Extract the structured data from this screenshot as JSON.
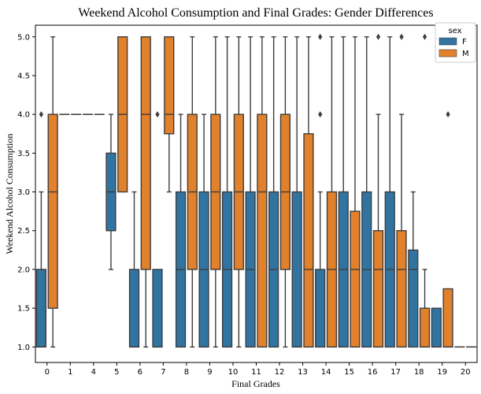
{
  "chart_data": {
    "type": "boxplot",
    "title": "Weekend Alcohol Consumption and Final Grades: Gender Differences",
    "xlabel": "Final Grades",
    "ylabel": "Weekend Alcohol Consumption",
    "categories": [
      "0",
      "1",
      "4",
      "5",
      "6",
      "7",
      "8",
      "9",
      "10",
      "11",
      "12",
      "13",
      "14",
      "15",
      "16",
      "17",
      "18",
      "19",
      "20"
    ],
    "ylim": [
      0.8,
      5.15
    ],
    "yticks": [
      1.0,
      1.5,
      2.0,
      2.5,
      3.0,
      3.5,
      4.0,
      4.5,
      5.0
    ],
    "legend": {
      "title": "sex",
      "placement": "top-right"
    },
    "series": [
      {
        "name": "F",
        "color": "#1f77b4",
        "boxes": [
          {
            "category": "0",
            "min": 1,
            "q1": 1,
            "median": 1,
            "q3": 2,
            "max": 3,
            "outliers": [
              4
            ]
          },
          {
            "category": "1",
            "min": 4,
            "q1": 4,
            "median": 4,
            "q3": 4,
            "max": 4,
            "outliers": []
          },
          {
            "category": "4",
            "min": 4,
            "q1": 4,
            "median": 4,
            "q3": 4,
            "max": 4,
            "outliers": []
          },
          {
            "category": "5",
            "min": 2,
            "q1": 2.5,
            "median": 3,
            "q3": 3.5,
            "max": 4,
            "outliers": []
          },
          {
            "category": "6",
            "min": 1,
            "q1": 1,
            "median": 1,
            "q3": 2,
            "max": 3,
            "outliers": []
          },
          {
            "category": "7",
            "min": 1,
            "q1": 1,
            "median": 1,
            "q3": 2,
            "max": 2,
            "outliers": [
              4
            ]
          },
          {
            "category": "8",
            "min": 1,
            "q1": 1,
            "median": 2,
            "q3": 3,
            "max": 4,
            "outliers": []
          },
          {
            "category": "9",
            "min": 1,
            "q1": 1,
            "median": 2,
            "q3": 3,
            "max": 4,
            "outliers": []
          },
          {
            "category": "10",
            "min": 1,
            "q1": 1,
            "median": 2,
            "q3": 3,
            "max": 5,
            "outliers": []
          },
          {
            "category": "11",
            "min": 1,
            "q1": 1,
            "median": 2,
            "q3": 3,
            "max": 5,
            "outliers": []
          },
          {
            "category": "12",
            "min": 1,
            "q1": 1,
            "median": 2,
            "q3": 3,
            "max": 5,
            "outliers": []
          },
          {
            "category": "13",
            "min": 1,
            "q1": 1,
            "median": 1,
            "q3": 3,
            "max": 5,
            "outliers": []
          },
          {
            "category": "14",
            "min": 1,
            "q1": 1,
            "median": 1,
            "q3": 2,
            "max": 3,
            "outliers": [
              4,
              5
            ]
          },
          {
            "category": "15",
            "min": 1,
            "q1": 1,
            "median": 2,
            "q3": 3,
            "max": 5,
            "outliers": []
          },
          {
            "category": "16",
            "min": 1,
            "q1": 1,
            "median": 2,
            "q3": 3,
            "max": 5,
            "outliers": []
          },
          {
            "category": "17",
            "min": 1,
            "q1": 1,
            "median": 2,
            "q3": 3,
            "max": 5,
            "outliers": []
          },
          {
            "category": "18",
            "min": 1,
            "q1": 1,
            "median": 2,
            "q3": 2.25,
            "max": 3,
            "outliers": []
          },
          {
            "category": "19",
            "min": 1,
            "q1": 1,
            "median": 1,
            "q3": 1.5,
            "max": 1.5,
            "outliers": []
          },
          {
            "category": "20",
            "min": 1,
            "q1": 1,
            "median": 1,
            "q3": 1,
            "max": 1,
            "outliers": []
          }
        ]
      },
      {
        "name": "M",
        "color": "#ff7f0e",
        "boxes": [
          {
            "category": "0",
            "min": 1,
            "q1": 1.5,
            "median": 3,
            "q3": 4,
            "max": 5,
            "outliers": []
          },
          {
            "category": "1",
            "min": 4,
            "q1": 4,
            "median": 4,
            "q3": 4,
            "max": 4,
            "outliers": []
          },
          {
            "category": "4",
            "min": 4,
            "q1": 4,
            "median": 4,
            "q3": 4,
            "max": 4,
            "outliers": []
          },
          {
            "category": "5",
            "min": 3,
            "q1": 3,
            "median": 4,
            "q3": 5,
            "max": 5,
            "outliers": []
          },
          {
            "category": "6",
            "min": 1,
            "q1": 2,
            "median": 4,
            "q3": 5,
            "max": 5,
            "outliers": []
          },
          {
            "category": "7",
            "min": 3,
            "q1": 3.75,
            "median": 4,
            "q3": 5,
            "max": 5,
            "outliers": []
          },
          {
            "category": "8",
            "min": 1,
            "q1": 2,
            "median": 3,
            "q3": 4,
            "max": 5,
            "outliers": []
          },
          {
            "category": "9",
            "min": 1,
            "q1": 2,
            "median": 3,
            "q3": 4,
            "max": 5,
            "outliers": []
          },
          {
            "category": "10",
            "min": 1,
            "q1": 2,
            "median": 3,
            "q3": 4,
            "max": 5,
            "outliers": []
          },
          {
            "category": "11",
            "min": 1,
            "q1": 1,
            "median": 3,
            "q3": 4,
            "max": 5,
            "outliers": []
          },
          {
            "category": "12",
            "min": 1,
            "q1": 2,
            "median": 3,
            "q3": 4,
            "max": 5,
            "outliers": []
          },
          {
            "category": "13",
            "min": 1,
            "q1": 1,
            "median": 2,
            "q3": 3.75,
            "max": 5,
            "outliers": []
          },
          {
            "category": "14",
            "min": 1,
            "q1": 1,
            "median": 2,
            "q3": 3,
            "max": 5,
            "outliers": []
          },
          {
            "category": "15",
            "min": 1,
            "q1": 1,
            "median": 2,
            "q3": 2.75,
            "max": 5,
            "outliers": []
          },
          {
            "category": "16",
            "min": 1,
            "q1": 1,
            "median": 2,
            "q3": 2.5,
            "max": 4,
            "outliers": [
              5
            ]
          },
          {
            "category": "17",
            "min": 1,
            "q1": 1,
            "median": 2,
            "q3": 2.5,
            "max": 4,
            "outliers": [
              5
            ]
          },
          {
            "category": "18",
            "min": 1,
            "q1": 1,
            "median": 1,
            "q3": 1.5,
            "max": 2,
            "outliers": [
              5
            ]
          },
          {
            "category": "19",
            "min": 1,
            "q1": 1,
            "median": 1,
            "q3": 1.75,
            "max": 1.75,
            "outliers": [
              4
            ]
          },
          {
            "category": "20",
            "min": 1,
            "q1": 1,
            "median": 1,
            "q3": 1,
            "max": 1,
            "outliers": []
          }
        ]
      }
    ]
  }
}
